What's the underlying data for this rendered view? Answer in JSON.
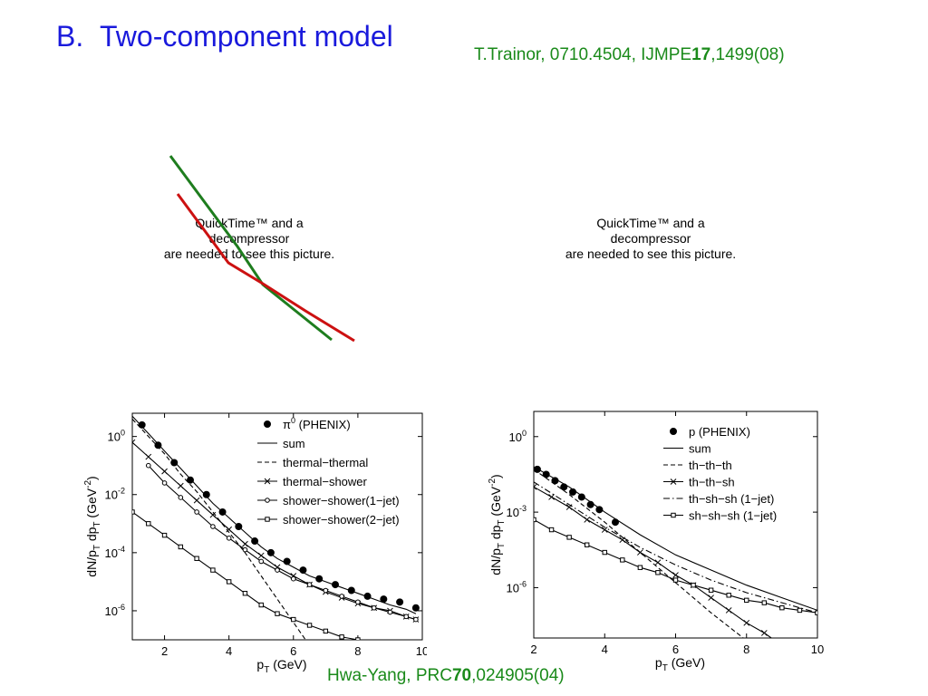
{
  "slide": {
    "label": "B.",
    "title": "Two-component model",
    "citation_top": {
      "pre": "T.Trainor, 0710.4504, IJMPE",
      "bold": "17",
      "post": ",1499(08)"
    },
    "citation_bottom": {
      "pre": "Hwa-Yang, PRC",
      "bold": "70",
      "post": ",024905(04)"
    },
    "colors": {
      "title": "#1a1adc",
      "citation": "#1a8a1a",
      "line_green": "#1e7d1e",
      "line_red": "#cc1111"
    }
  },
  "placeholders": [
    {
      "line1": "QuickTime™ and a",
      "line2": "decompressor",
      "line3": "are needed to see this picture."
    },
    {
      "line1": "QuickTime™ and a",
      "line2": "decompressor",
      "line3": "are needed to see this picture."
    }
  ],
  "chart_data": [
    {
      "type": "line",
      "xlabel": "p_T (GeV)",
      "ylabel": "dN/p_T dp_T (GeV^-2)",
      "xlim": [
        1,
        10
      ],
      "yscale": "log",
      "ylim_exp": [
        -7,
        0.8
      ],
      "xticks": [
        "2",
        "4",
        "6",
        "8",
        "10"
      ],
      "yticks": [
        {
          "exp": 0,
          "label": "10^0"
        },
        {
          "exp": -2,
          "label": "10^-2"
        },
        {
          "exp": -4,
          "label": "10^-4"
        },
        {
          "exp": -6,
          "label": "10^-6"
        }
      ],
      "legend": [
        "π0 (PHENIX)",
        "sum",
        "thermal−thermal",
        "thermal−shower",
        "shower−shower(1−jet)",
        "shower−shower(2−jet)"
      ],
      "series": [
        {
          "name": "π0 (PHENIX)",
          "style": "points",
          "x": [
            1.3,
            1.8,
            2.3,
            2.8,
            3.3,
            3.8,
            4.3,
            4.8,
            5.3,
            5.8,
            6.3,
            6.8,
            7.3,
            7.8,
            8.3,
            8.8,
            9.3,
            9.8
          ],
          "y_exp": [
            0.4,
            -0.3,
            -0.9,
            -1.5,
            -2.0,
            -2.6,
            -3.1,
            -3.6,
            -4.0,
            -4.3,
            -4.6,
            -4.9,
            -5.1,
            -5.3,
            -5.5,
            -5.6,
            -5.7,
            -5.9
          ]
        },
        {
          "name": "sum",
          "style": "solid",
          "x": [
            1,
            1.5,
            2,
            2.5,
            3,
            3.5,
            4,
            4.5,
            5,
            5.5,
            6,
            6.5,
            7,
            7.5,
            8,
            8.5,
            9,
            9.5,
            9.8
          ],
          "y_exp": [
            0.7,
            0.1,
            -0.5,
            -1.1,
            -1.7,
            -2.3,
            -2.8,
            -3.3,
            -3.8,
            -4.2,
            -4.5,
            -4.8,
            -5.0,
            -5.2,
            -5.4,
            -5.6,
            -5.8,
            -5.95,
            -6.1
          ]
        },
        {
          "name": "thermal−thermal",
          "style": "dashed",
          "x": [
            1,
            1.5,
            2,
            2.5,
            3,
            3.5,
            4,
            4.5,
            5,
            5.5,
            6,
            6.5
          ],
          "y_exp": [
            0.6,
            0.0,
            -0.6,
            -1.3,
            -1.9,
            -2.6,
            -3.3,
            -4.0,
            -4.8,
            -5.6,
            -6.4,
            -7.2
          ]
        },
        {
          "name": "thermal−shower",
          "style": "cross",
          "x": [
            1,
            1.5,
            2,
            2.5,
            3,
            3.5,
            4,
            4.5,
            5,
            5.5,
            6,
            6.5,
            7,
            7.5,
            8,
            8.5,
            9,
            9.5,
            9.8
          ],
          "y_exp": [
            -0.2,
            -0.7,
            -1.2,
            -1.7,
            -2.2,
            -2.7,
            -3.2,
            -3.7,
            -4.1,
            -4.5,
            -4.8,
            -5.1,
            -5.35,
            -5.55,
            -5.75,
            -5.9,
            -6.0,
            -6.2,
            -6.3
          ]
        },
        {
          "name": "shower−shower(1−jet)",
          "style": "circle",
          "x": [
            1.5,
            2,
            2.5,
            3,
            3.5,
            4,
            4.5,
            5,
            5.5,
            6,
            6.5,
            7,
            7.5,
            8,
            8.5,
            9,
            9.5,
            9.8
          ],
          "y_exp": [
            -1.0,
            -1.6,
            -2.1,
            -2.6,
            -3.1,
            -3.5,
            -3.9,
            -4.3,
            -4.6,
            -4.9,
            -5.1,
            -5.3,
            -5.5,
            -5.7,
            -5.9,
            -6.05,
            -6.2,
            -6.3
          ]
        },
        {
          "name": "shower−shower(2−jet)",
          "style": "square",
          "x": [
            1,
            1.5,
            2,
            2.5,
            3,
            3.5,
            4,
            4.5,
            5,
            5.5,
            6,
            6.5,
            7,
            7.5,
            8
          ],
          "y_exp": [
            -2.6,
            -3.0,
            -3.4,
            -3.8,
            -4.2,
            -4.6,
            -5.0,
            -5.4,
            -5.8,
            -6.1,
            -6.3,
            -6.5,
            -6.7,
            -6.9,
            -7.0
          ]
        }
      ]
    },
    {
      "type": "line",
      "xlabel": "p_T (GeV)",
      "ylabel": "dN/p_T dp_T (GeV^-2)",
      "xlim": [
        2,
        10
      ],
      "yscale": "log",
      "ylim_exp": [
        -8,
        1
      ],
      "xticks": [
        "2",
        "4",
        "6",
        "8",
        "10"
      ],
      "yticks": [
        {
          "exp": 0,
          "label": "10^0"
        },
        {
          "exp": -3,
          "label": "10^-3"
        },
        {
          "exp": -6,
          "label": "10^-6"
        }
      ],
      "legend": [
        "p (PHENIX)",
        "sum",
        "th−th−th",
        "th−th−sh",
        "th−sh−sh (1−jet)",
        "sh−sh−sh (1−jet)"
      ],
      "series": [
        {
          "name": "p (PHENIX)",
          "style": "points",
          "x": [
            2.1,
            2.35,
            2.6,
            2.85,
            3.1,
            3.35,
            3.6,
            3.85,
            4.3
          ],
          "y_exp": [
            -1.3,
            -1.5,
            -1.75,
            -2.0,
            -2.2,
            -2.4,
            -2.7,
            -2.9,
            -3.4
          ]
        },
        {
          "name": "sum",
          "style": "solid",
          "x": [
            2,
            3,
            4,
            5,
            6,
            7,
            8,
            9,
            10
          ],
          "y_exp": [
            -1.2,
            -2.0,
            -3.0,
            -3.9,
            -4.7,
            -5.3,
            -5.9,
            -6.4,
            -6.9
          ]
        },
        {
          "name": "th−th−th",
          "style": "dashed",
          "x": [
            2,
            3,
            4,
            5,
            6,
            7,
            8,
            8.5
          ],
          "y_exp": [
            -1.3,
            -2.3,
            -3.4,
            -4.6,
            -5.8,
            -7.0,
            -8.1,
            -8.6
          ]
        },
        {
          "name": "th−th−sh",
          "style": "cross",
          "x": [
            2,
            2.5,
            3,
            3.5,
            4,
            4.5,
            5,
            5.5,
            6,
            6.5,
            7,
            7.5,
            8,
            8.5,
            9
          ],
          "y_exp": [
            -2.0,
            -2.4,
            -2.8,
            -3.3,
            -3.7,
            -4.1,
            -4.6,
            -5.0,
            -5.5,
            -5.9,
            -6.4,
            -6.9,
            -7.4,
            -7.8,
            -8.3
          ]
        },
        {
          "name": "th−sh−sh (1−jet)",
          "style": "dashdot",
          "x": [
            2,
            3,
            4,
            5,
            6,
            7,
            8,
            9,
            10
          ],
          "y_exp": [
            -1.8,
            -2.7,
            -3.6,
            -4.4,
            -5.1,
            -5.7,
            -6.2,
            -6.6,
            -7.0
          ]
        },
        {
          "name": "sh−sh−sh (1−jet)",
          "style": "square",
          "x": [
            2,
            2.5,
            3,
            3.5,
            4,
            4.5,
            5,
            5.5,
            6,
            6.5,
            7,
            7.5,
            8,
            8.5,
            9,
            9.5,
            10
          ],
          "y_exp": [
            -3.3,
            -3.7,
            -4.0,
            -4.3,
            -4.6,
            -4.9,
            -5.2,
            -5.4,
            -5.7,
            -5.9,
            -6.1,
            -6.3,
            -6.5,
            -6.6,
            -6.8,
            -6.9,
            -7.0
          ]
        }
      ]
    }
  ]
}
